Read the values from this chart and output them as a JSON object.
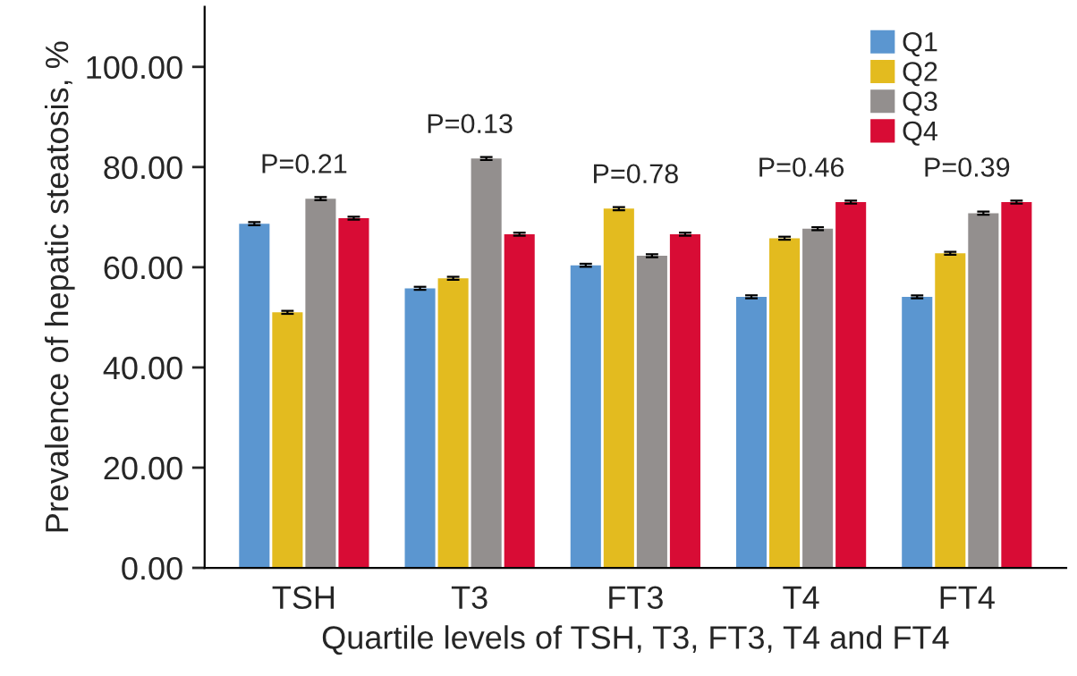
{
  "chart_data": {
    "type": "bar",
    "xlabel": "Quartile levels of TSH, T3, FT3, T4 and FT4",
    "ylabel": "Prevalence of hepatic steatosis, %",
    "categories": [
      "TSH",
      "T3",
      "FT3",
      "T4",
      "FT4"
    ],
    "series": [
      {
        "name": "Q1",
        "color": "#5b96d0",
        "values": [
          68.7,
          55.8,
          60.4,
          54.1,
          54.1
        ],
        "errors": [
          0.3,
          0.3,
          0.3,
          0.3,
          0.3
        ]
      },
      {
        "name": "Q2",
        "color": "#e3bb1f",
        "values": [
          51.0,
          57.8,
          71.7,
          65.8,
          62.8
        ],
        "errors": [
          0.3,
          0.3,
          0.3,
          0.3,
          0.3
        ]
      },
      {
        "name": "Q3",
        "color": "#938f8e",
        "values": [
          73.7,
          81.7,
          62.3,
          67.7,
          70.8
        ],
        "errors": [
          0.3,
          0.3,
          0.3,
          0.3,
          0.3
        ]
      },
      {
        "name": "Q4",
        "color": "#d80c35",
        "values": [
          69.8,
          66.6,
          66.6,
          73.0,
          73.0
        ],
        "errors": [
          0.3,
          0.3,
          0.3,
          0.3,
          0.3
        ]
      }
    ],
    "annotations": [
      "P=0.21",
      "P=0.13",
      "P=0.78",
      "P=0.46",
      "P=0.39"
    ],
    "ylim": [
      0,
      112
    ],
    "yticks": [
      {
        "value": 0,
        "label": "0.00"
      },
      {
        "value": 20,
        "label": "20.00"
      },
      {
        "value": 40,
        "label": "40.00"
      },
      {
        "value": 60,
        "label": "60.00"
      },
      {
        "value": 80,
        "label": "80.00"
      },
      {
        "value": 100,
        "label": "100.00"
      }
    ],
    "legend": "top right",
    "grid": false
  }
}
